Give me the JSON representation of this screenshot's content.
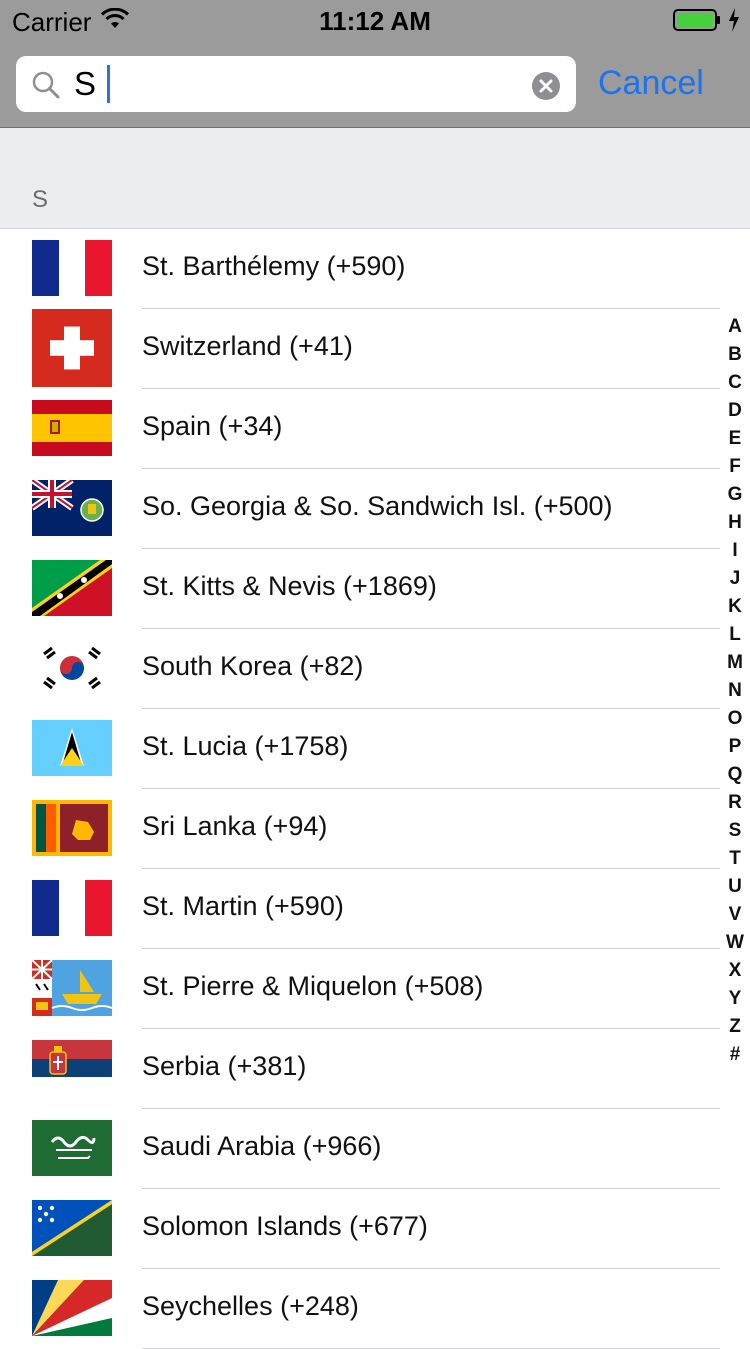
{
  "status_bar": {
    "carrier": "Carrier",
    "time": "11:12 AM",
    "battery_color": "#45d13b"
  },
  "search": {
    "value": "S",
    "cancel_label": "Cancel"
  },
  "section": {
    "letter": "S"
  },
  "countries": [
    {
      "name": "St. Barthélemy (+590)",
      "flag": "france-flag-icon"
    },
    {
      "name": "Switzerland (+41)",
      "flag": "switzerland-flag-icon"
    },
    {
      "name": "Spain (+34)",
      "flag": "spain-flag-icon"
    },
    {
      "name": "So. Georgia & So. Sandwich Isl. (+500)",
      "flag": "south-georgia-flag-icon"
    },
    {
      "name": "St. Kitts & Nevis (+1869)",
      "flag": "saint-kitts-flag-icon"
    },
    {
      "name": "South Korea (+82)",
      "flag": "south-korea-flag-icon"
    },
    {
      "name": "St. Lucia (+1758)",
      "flag": "saint-lucia-flag-icon"
    },
    {
      "name": "Sri Lanka (+94)",
      "flag": "sri-lanka-flag-icon"
    },
    {
      "name": "St. Martin (+590)",
      "flag": "france-flag-icon"
    },
    {
      "name": "St. Pierre & Miquelon (+508)",
      "flag": "saint-pierre-flag-icon"
    },
    {
      "name": "Serbia (+381)",
      "flag": "serbia-flag-icon"
    },
    {
      "name": "Saudi Arabia (+966)",
      "flag": "saudi-arabia-flag-icon"
    },
    {
      "name": "Solomon Islands (+677)",
      "flag": "solomon-islands-flag-icon"
    },
    {
      "name": "Seychelles (+248)",
      "flag": "seychelles-flag-icon"
    }
  ],
  "index": [
    "A",
    "B",
    "C",
    "D",
    "E",
    "F",
    "G",
    "H",
    "I",
    "J",
    "K",
    "L",
    "M",
    "N",
    "O",
    "P",
    "Q",
    "R",
    "S",
    "T",
    "U",
    "V",
    "W",
    "X",
    "Y",
    "Z",
    "#"
  ],
  "colors": {
    "accent": "#1b73f0",
    "header_gray": "#9b9b9b",
    "section_bg": "#ecedf1"
  }
}
